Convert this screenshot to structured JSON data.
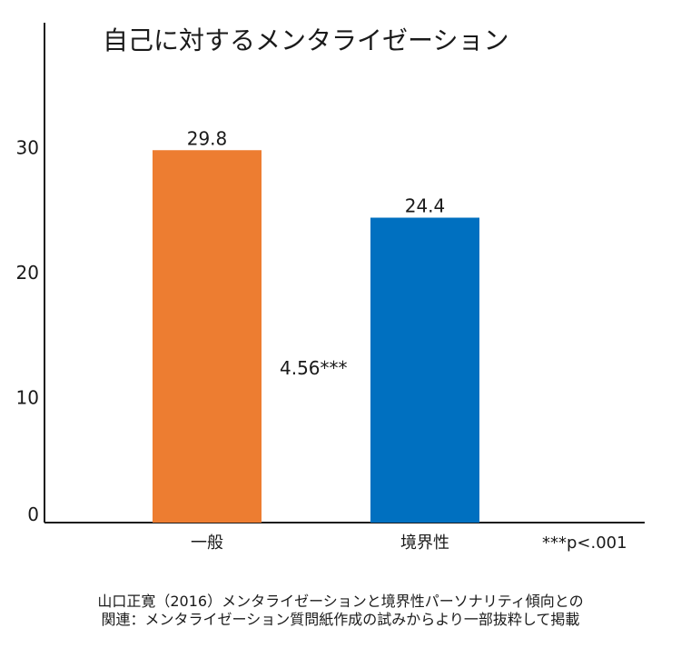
{
  "chart_data": {
    "type": "bar",
    "title": "自己に対するメンタライゼーション",
    "categories": [
      "一般",
      "境界性"
    ],
    "values": [
      29.8,
      24.4
    ],
    "data_labels": [
      "29.8",
      "24.4"
    ],
    "colors": [
      "#ED7D31",
      "#0070C0"
    ],
    "ylim": [
      0,
      40
    ],
    "yticks": [
      0,
      10,
      20,
      30
    ],
    "grid": false,
    "xlabel": "",
    "ylabel": "",
    "annotation": "4.56***",
    "significance_note": "***p<.001"
  },
  "source_lines": [
    "山口正寛（2016）メンタライゼーションと境界性パーソナリティ傾向との",
    "関連：メンタライゼーション質問紙作成の試みからより一部抜粋して掲載"
  ]
}
